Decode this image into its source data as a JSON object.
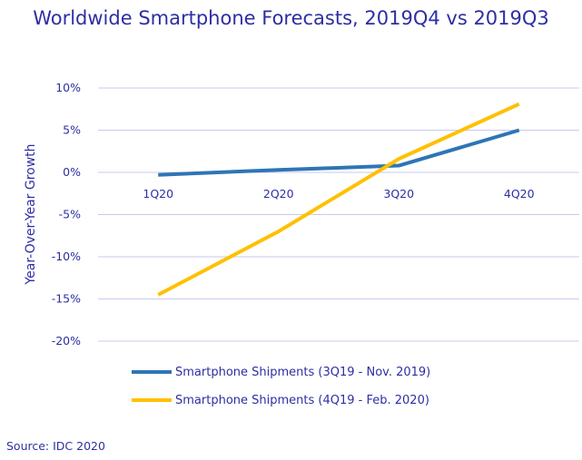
{
  "chart_data": {
    "type": "line",
    "title": "Worldwide Smartphone Forecasts, 2019Q4 vs 2019Q3",
    "ylabel": "Year-Over-Year Growth",
    "xlabel": "",
    "categories": [
      "1Q20",
      "2Q20",
      "3Q20",
      "4Q20"
    ],
    "y_ticks": [
      "10%",
      "5%",
      "0%",
      "-5%",
      "-10%",
      "-15%",
      "-20%"
    ],
    "ylim": [
      -20,
      10
    ],
    "grid": true,
    "legend_position": "bottom-left",
    "series": [
      {
        "name": "Smartphone Shipments (3Q19 - Nov. 2019)",
        "values": [
          -0.3,
          0.3,
          0.8,
          5.0
        ],
        "color": "#2e75b6"
      },
      {
        "name": "Smartphone Shipments (4Q19 - Feb. 2020)",
        "values": [
          -14.5,
          -7.0,
          1.6,
          8.1
        ],
        "color": "#ffc000"
      }
    ]
  },
  "source": "Source: IDC 2020"
}
